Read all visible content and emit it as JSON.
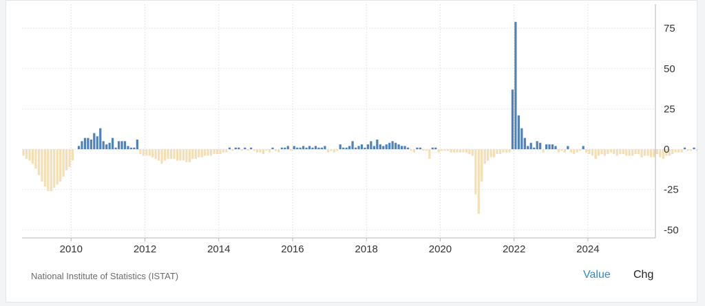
{
  "source_label": "National Institute of Statistics (ISTAT)",
  "buttons": {
    "value_label": "Value",
    "chg_label": "Chg"
  },
  "colors": {
    "positive": "#4f81bd",
    "negative": "#f5deb3",
    "grid": "#e5e5e5",
    "axis": "#b5b5b5"
  },
  "chart_data": {
    "type": "bar",
    "title": "",
    "xlabel": "",
    "ylabel": "",
    "ylim": [
      -55,
      90
    ],
    "xlim": [
      2008.67,
      2025.83
    ],
    "grid": true,
    "yaxis_side": "right",
    "yticks": [
      75,
      50,
      25,
      0,
      -25,
      -50
    ],
    "xticks": [
      2010,
      2012,
      2014,
      2016,
      2018,
      2020,
      2022,
      2024
    ],
    "ytick_labels": [
      "75",
      "50",
      "25",
      "0",
      "-25",
      "-50"
    ],
    "xtick_labels": [
      "2010",
      "2012",
      "2014",
      "2016",
      "2018",
      "2020",
      "2022",
      "2024"
    ],
    "x_start": "2008-09",
    "frequency": "monthly",
    "values": [
      -4,
      -6,
      -7,
      -9,
      -12,
      -16,
      -20,
      -23,
      -26,
      -26,
      -24,
      -22,
      -20,
      -17,
      -13,
      -11,
      -7,
      0,
      2,
      5,
      7,
      7,
      6,
      10,
      8,
      13,
      5,
      3,
      4,
      7,
      1,
      5,
      5,
      5,
      2,
      1,
      1,
      6,
      -3,
      -4,
      -4,
      -4,
      -5,
      -6,
      -7,
      -9,
      -7,
      -6,
      -6,
      -6,
      -7,
      -7,
      -7,
      -8,
      -8,
      -6,
      -6,
      -5,
      -5,
      -4,
      -4,
      -4,
      -3,
      -3,
      -3,
      -2,
      -2,
      1,
      -1,
      1,
      1,
      -1,
      1,
      -1,
      1,
      -1,
      -2,
      -2,
      -3,
      -1,
      -2,
      1,
      -1,
      -2,
      1,
      1,
      2,
      -1,
      2,
      1,
      1,
      2,
      1,
      2,
      1,
      2,
      1,
      1,
      2,
      -2,
      -1,
      -2,
      -1,
      3,
      1,
      1,
      2,
      5,
      1,
      2,
      3,
      1,
      3,
      5,
      2,
      6,
      3,
      2,
      3,
      4,
      5,
      4,
      3,
      2,
      2,
      1,
      -1,
      -2,
      1,
      1,
      -1,
      -1,
      -6,
      1,
      1,
      -2,
      -1,
      -1,
      -1,
      -2,
      -2,
      -2,
      -2,
      -2,
      -2,
      -3,
      -4,
      -28,
      -40,
      -20,
      -9,
      -7,
      -5,
      -5,
      -3,
      -3,
      -2,
      -2,
      -2,
      37,
      79,
      21,
      13,
      7,
      2,
      4,
      1,
      5,
      4,
      -2,
      3,
      3,
      3,
      2,
      -2,
      -1,
      -2,
      2,
      -2,
      -3,
      -2,
      -1,
      2,
      -2,
      -3,
      -4,
      -6,
      -4,
      -3,
      -4,
      -3,
      -2,
      -3,
      -4,
      -3,
      -3,
      -4,
      -4,
      -4,
      -3,
      -3,
      -5,
      -4,
      -4,
      -5,
      -5,
      -3,
      -5,
      -6,
      -4,
      -4,
      -3,
      -2,
      -2,
      -2,
      1,
      -1,
      -1,
      1,
      -1,
      1,
      -2,
      1
    ]
  }
}
